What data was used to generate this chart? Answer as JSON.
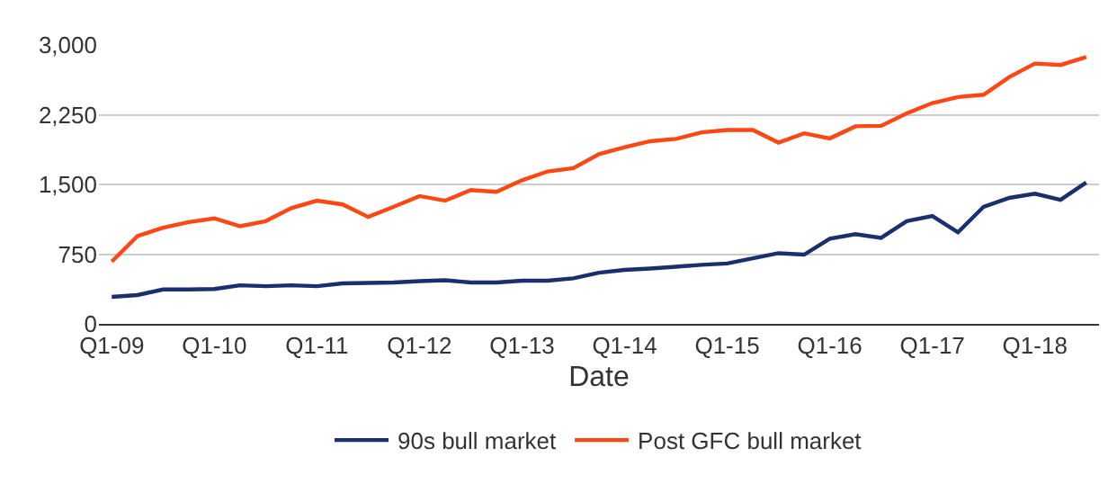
{
  "chart_data": {
    "type": "line",
    "xlabel": "Date",
    "categories": [
      "Q1-09",
      null,
      null,
      null,
      "Q1-10",
      null,
      null,
      null,
      "Q1-11",
      null,
      null,
      null,
      "Q1-12",
      null,
      null,
      null,
      "Q1-13",
      null,
      null,
      null,
      "Q1-14",
      null,
      null,
      null,
      "Q1-15",
      null,
      null,
      null,
      "Q1-16",
      null,
      null,
      null,
      "Q1-17",
      null,
      null,
      null,
      "Q1-18",
      null,
      null
    ],
    "series": [
      {
        "name": "90s bull market",
        "color": "#1b2f6e",
        "values": [
          290,
          310,
          370,
          370,
          375,
          415,
          405,
          415,
          405,
          435,
          440,
          445,
          460,
          470,
          445,
          445,
          465,
          465,
          490,
          550,
          580,
          595,
          615,
          635,
          650,
          705,
          760,
          745,
          915,
          965,
          925,
          1105,
          1160,
          985,
          1260,
          1355,
          1400,
          1335,
          1520
        ]
      },
      {
        "name": "Post GFC bull market",
        "color": "#ff4713",
        "values": [
          670,
          945,
          1035,
          1095,
          1135,
          1050,
          1105,
          1245,
          1325,
          1285,
          1150,
          1260,
          1375,
          1325,
          1440,
          1420,
          1545,
          1640,
          1675,
          1825,
          1900,
          1965,
          1990,
          2060,
          2085,
          2085,
          1950,
          2050,
          1995,
          2125,
          2130,
          2265,
          2375,
          2440,
          2465,
          2655,
          2800,
          2785,
          2870
        ]
      }
    ],
    "ylim": [
      0,
      3000
    ],
    "yticks": [
      0,
      {
        "value": 750,
        "label": "750"
      },
      {
        "value": 1500,
        "label": "1,500"
      },
      {
        "value": 2250,
        "label": "2,250"
      },
      {
        "value": 3000,
        "label": "3,000"
      }
    ],
    "grid": "y",
    "legend": "bottom",
    "marker": "none",
    "line_style": "solid"
  }
}
